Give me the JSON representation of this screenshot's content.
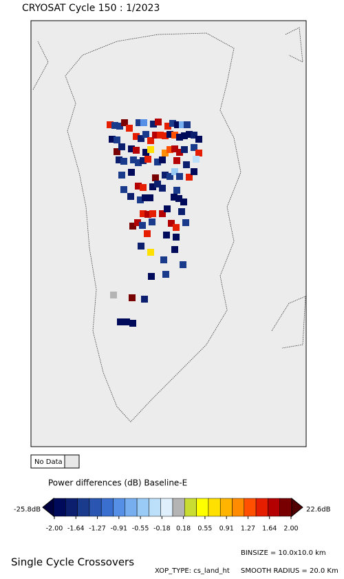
{
  "header": {
    "title": "CRYOSAT Cycle 150 : 1/2023"
  },
  "legend": {
    "no_data": "No Data"
  },
  "colorbar": {
    "title": "Power differences (dB) Baseline-E",
    "min_label": "-25.8dB",
    "max_label": "22.6dB",
    "ticks": [
      "-2.00",
      "-1.64",
      "-1.27",
      "-0.91",
      "-0.55",
      "-0.18",
      "0.18",
      "0.55",
      "0.91",
      "1.27",
      "1.64",
      "2.00"
    ]
  },
  "footer": {
    "title": "Single Cycle Crossovers",
    "binsize": "BINSIZE = 10.0x10.0 km",
    "xop_type": "XOP_TYPE: cs_land_ht",
    "smooth_radius": "SMOOTH RADIUS = 20.0 Km"
  }
}
